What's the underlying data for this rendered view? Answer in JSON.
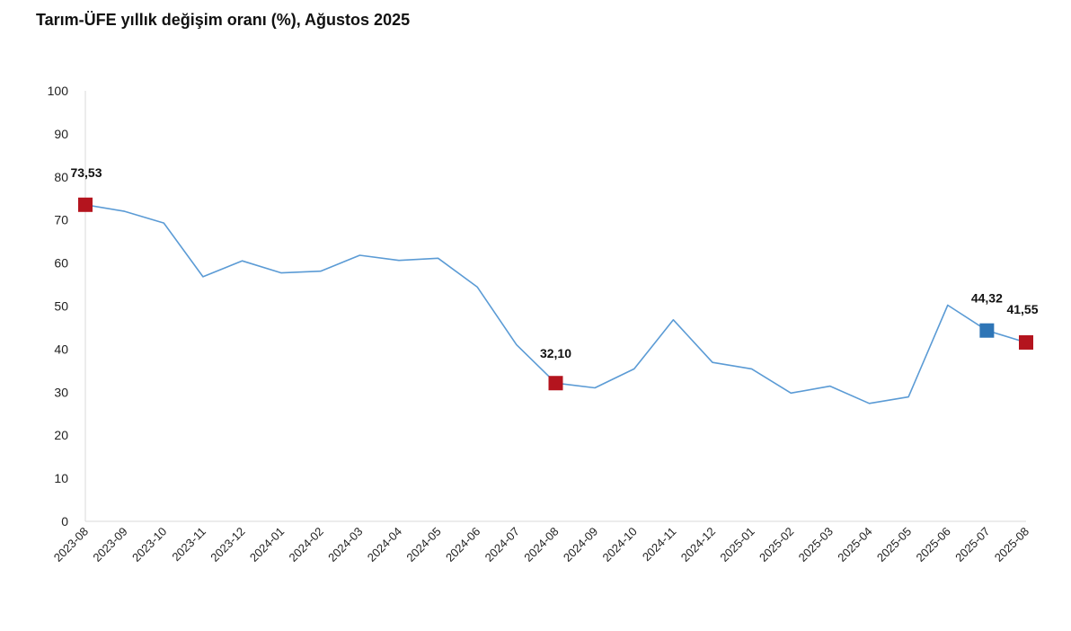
{
  "chart_data": {
    "type": "line",
    "title": "Tarım-ÜFE yıllık değişim oranı (%), Ağustos 2025",
    "xlabel": "",
    "ylabel": "",
    "ylim": [
      0,
      100
    ],
    "yticks": [
      0,
      10,
      20,
      30,
      40,
      50,
      60,
      70,
      80,
      90,
      100
    ],
    "grid": false,
    "legend": "none",
    "categories": [
      "2023-08",
      "2023-09",
      "2023-10",
      "2023-11",
      "2023-12",
      "2024-01",
      "2024-02",
      "2024-03",
      "2024-04",
      "2024-05",
      "2024-06",
      "2024-07",
      "2024-08",
      "2024-09",
      "2024-10",
      "2024-11",
      "2024-12",
      "2025-01",
      "2025-02",
      "2025-03",
      "2025-04",
      "2025-05",
      "2025-06",
      "2025-07",
      "2025-08"
    ],
    "series": [
      {
        "color": "#5b9bd5",
        "values": [
          73.53,
          72.0,
          69.3,
          56.8,
          60.5,
          57.7,
          58.1,
          61.8,
          60.6,
          61.1,
          54.4,
          41.0,
          32.1,
          31.0,
          35.4,
          46.8,
          36.9,
          35.4,
          29.8,
          31.4,
          27.4,
          28.9,
          50.2,
          44.32,
          41.55
        ]
      }
    ],
    "highlights": [
      {
        "index": 0,
        "label": "73,53",
        "color": "#b4141e"
      },
      {
        "index": 12,
        "label": "32,10",
        "color": "#b4141e"
      },
      {
        "index": 23,
        "label": "44,32",
        "color": "#2e75b6"
      },
      {
        "index": 24,
        "label": "41,55",
        "color": "#b4141e"
      }
    ]
  }
}
